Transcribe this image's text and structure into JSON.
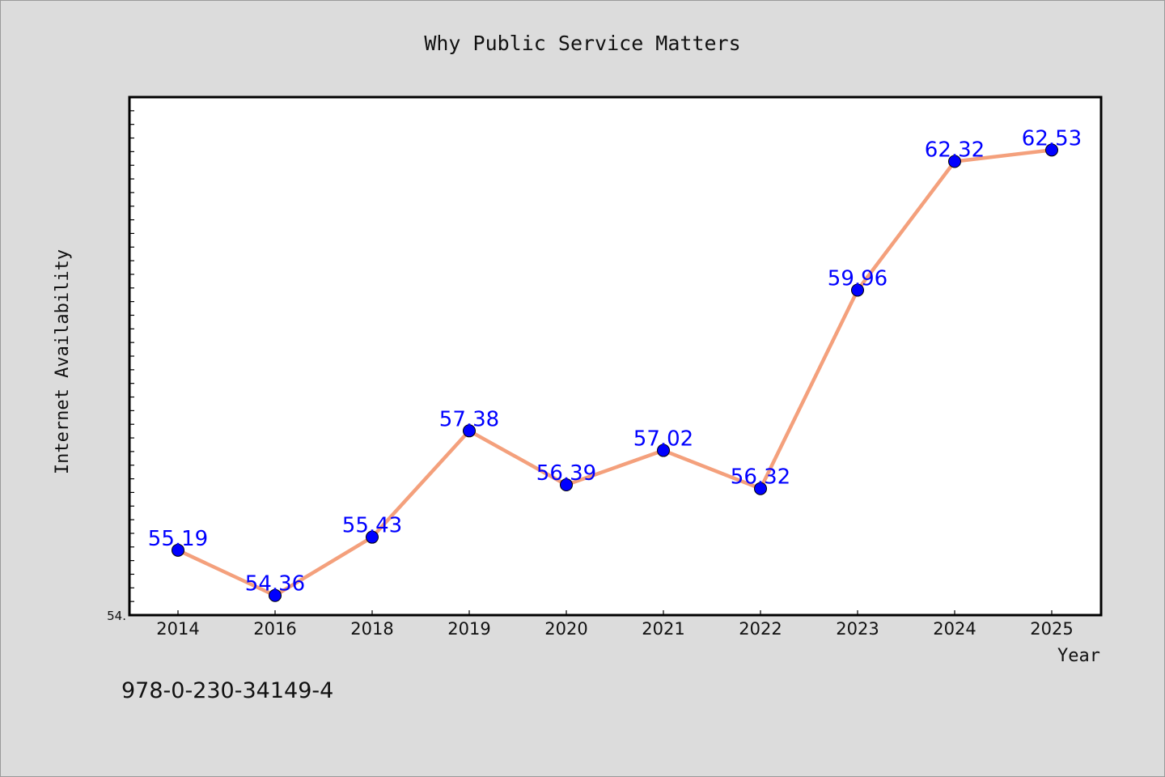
{
  "chart_data": {
    "type": "line",
    "title": "Why Public Service Matters",
    "xlabel": "Year",
    "ylabel": "Internet Availability",
    "categories": [
      "2014",
      "2016",
      "2018",
      "2019",
      "2020",
      "2021",
      "2022",
      "2023",
      "2024",
      "2025"
    ],
    "series": [
      {
        "values": [
          55.19,
          54.36,
          55.43,
          57.38,
          56.39,
          57.02,
          56.32,
          59.96,
          62.32,
          62.53
        ]
      }
    ],
    "data_labels": [
      "55.19",
      "54.36",
      "55.43",
      "57.38",
      "56.39",
      "57.02",
      "56.32",
      "59.96",
      "62.32",
      "62.53"
    ],
    "ylim": [
      54.0,
      63.5
    ],
    "ytick_labels": [
      "54."
    ],
    "grid": false,
    "colors": {
      "line": "#f4a07c",
      "marker": "#0000ff",
      "label": "#0000ff",
      "background": "#dcdcdc",
      "plot_bg": "#ffffff"
    }
  },
  "footer_text": "978-0-230-34149-4"
}
